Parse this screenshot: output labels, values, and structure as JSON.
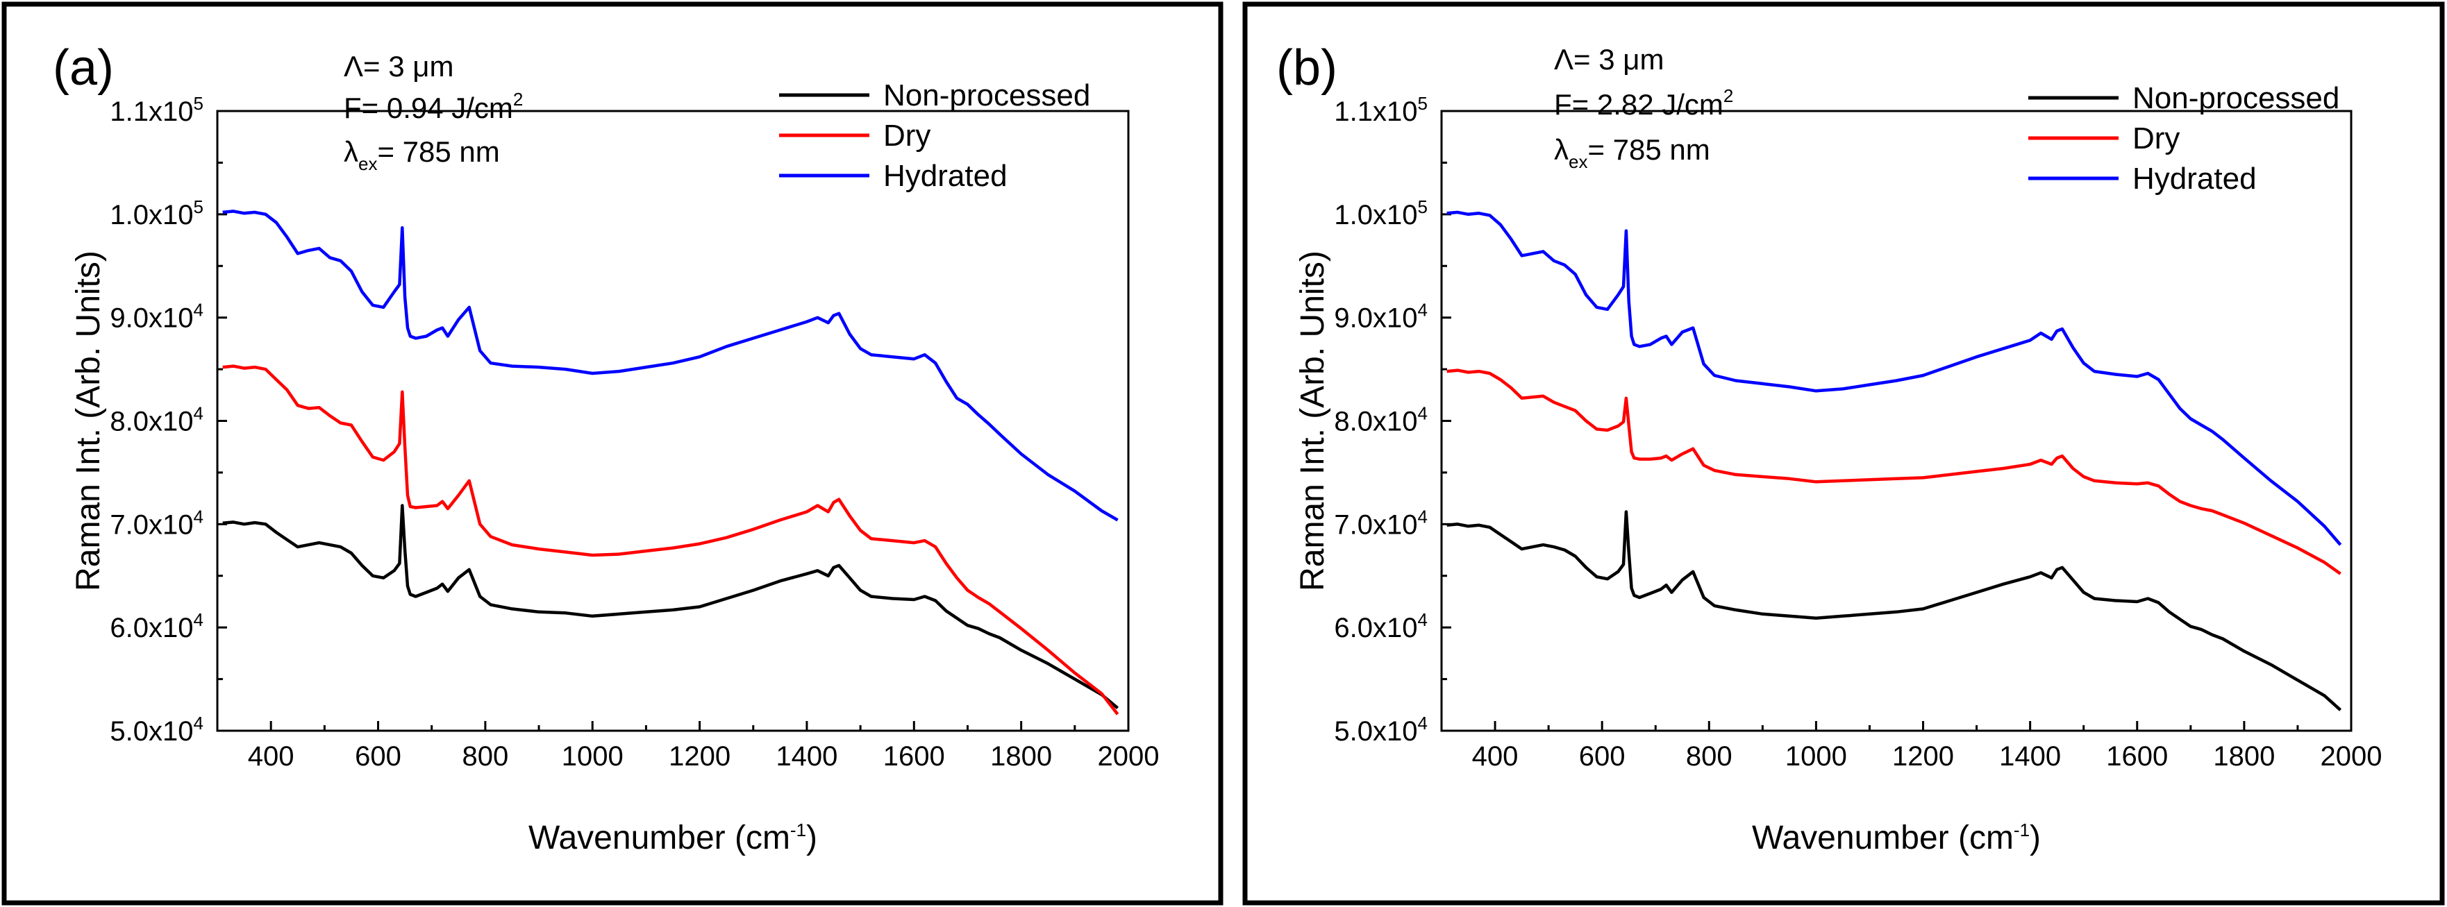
{
  "chart_data": [
    {
      "type": "line",
      "panel_label": "(a)",
      "xlabel": "Wavenumber",
      "xlabel_unit": "(cm",
      "xlabel_unit_sup": "-1",
      "xlabel_unit_end": ")",
      "ylabel": "Raman Int. (Arb. Units)",
      "xlim": [
        300,
        2000
      ],
      "ylim": [
        50000,
        110000
      ],
      "xticks": [
        400,
        600,
        800,
        1000,
        1200,
        1400,
        1600,
        1800,
        2000
      ],
      "yticks": [
        {
          "value": 50000,
          "mant": "5.0x10",
          "exp": "4"
        },
        {
          "value": 60000,
          "mant": "6.0x10",
          "exp": "4"
        },
        {
          "value": 70000,
          "mant": "7.0x10",
          "exp": "4"
        },
        {
          "value": 80000,
          "mant": "8.0x10",
          "exp": "4"
        },
        {
          "value": 90000,
          "mant": "9.0x10",
          "exp": "4"
        },
        {
          "value": 100000,
          "mant": "1.0x10",
          "exp": "5"
        },
        {
          "value": 110000,
          "mant": "1.1x10",
          "exp": "5"
        }
      ],
      "params": {
        "lambda_line": "Λ= 3 μm",
        "fluence": "F= 0.94 J/cm",
        "fluence_sup": "2",
        "lambda_sym": "λ",
        "lambda_sub": "ex",
        "lambda_value": "= 785 nm"
      },
      "legend": {
        "position": "top-right"
      },
      "series": [
        {
          "name": "Non-processed",
          "color": "#000000",
          "x": [
            310,
            330,
            350,
            370,
            390,
            410,
            430,
            450,
            470,
            490,
            510,
            530,
            550,
            570,
            590,
            610,
            630,
            640,
            645,
            650,
            655,
            660,
            670,
            690,
            710,
            720,
            730,
            750,
            770,
            790,
            810,
            850,
            900,
            950,
            1000,
            1050,
            1100,
            1150,
            1200,
            1250,
            1300,
            1350,
            1400,
            1420,
            1440,
            1450,
            1460,
            1480,
            1500,
            1520,
            1560,
            1600,
            1620,
            1640,
            1660,
            1680,
            1700,
            1720,
            1740,
            1760,
            1800,
            1850,
            1900,
            1950,
            1980
          ],
          "y": [
            70100,
            70200,
            70000,
            70150,
            70000,
            69200,
            68500,
            67800,
            68000,
            68200,
            68000,
            67800,
            67200,
            66000,
            65000,
            64800,
            65500,
            66200,
            71800,
            67500,
            64000,
            63200,
            63000,
            63400,
            63800,
            64200,
            63500,
            64800,
            65600,
            63000,
            62200,
            61800,
            61500,
            61400,
            61100,
            61300,
            61500,
            61700,
            62000,
            62800,
            63600,
            64500,
            65200,
            65500,
            65000,
            65800,
            66000,
            64800,
            63600,
            63000,
            62800,
            62700,
            63000,
            62600,
            61600,
            60900,
            60200,
            59900,
            59400,
            59000,
            57800,
            56500,
            55000,
            53500,
            52200
          ]
        },
        {
          "name": "Dry",
          "color": "#ff0000",
          "x": [
            310,
            330,
            350,
            370,
            390,
            410,
            430,
            450,
            470,
            490,
            510,
            530,
            550,
            570,
            590,
            610,
            630,
            640,
            645,
            650,
            655,
            660,
            670,
            690,
            710,
            720,
            730,
            750,
            770,
            790,
            810,
            850,
            900,
            950,
            1000,
            1050,
            1100,
            1150,
            1200,
            1250,
            1300,
            1350,
            1400,
            1420,
            1440,
            1450,
            1460,
            1480,
            1500,
            1520,
            1560,
            1600,
            1620,
            1640,
            1660,
            1680,
            1700,
            1720,
            1740,
            1760,
            1800,
            1850,
            1900,
            1950,
            1980
          ],
          "y": [
            85200,
            85300,
            85100,
            85200,
            85000,
            84000,
            83000,
            81500,
            81200,
            81300,
            80500,
            79800,
            79600,
            78000,
            76500,
            76200,
            77000,
            77800,
            82800,
            77500,
            72800,
            71700,
            71600,
            71700,
            71800,
            72200,
            71500,
            72800,
            74200,
            70000,
            68800,
            68000,
            67600,
            67300,
            67000,
            67100,
            67400,
            67700,
            68100,
            68700,
            69500,
            70400,
            71200,
            71800,
            71200,
            72100,
            72400,
            70800,
            69400,
            68600,
            68400,
            68200,
            68400,
            67800,
            66200,
            64800,
            63600,
            62900,
            62300,
            61500,
            59900,
            57800,
            55600,
            53600,
            51600
          ]
        },
        {
          "name": "Hydrated",
          "color": "#0000ff",
          "x": [
            310,
            330,
            350,
            370,
            390,
            410,
            430,
            450,
            470,
            490,
            510,
            530,
            550,
            570,
            590,
            610,
            630,
            640,
            645,
            650,
            655,
            660,
            670,
            690,
            710,
            720,
            730,
            750,
            770,
            790,
            810,
            850,
            900,
            950,
            1000,
            1050,
            1100,
            1150,
            1200,
            1250,
            1300,
            1350,
            1400,
            1420,
            1440,
            1450,
            1460,
            1480,
            1500,
            1520,
            1560,
            1600,
            1620,
            1640,
            1660,
            1680,
            1700,
            1720,
            1740,
            1760,
            1800,
            1850,
            1900,
            1950,
            1980
          ],
          "y": [
            100200,
            100300,
            100100,
            100200,
            100000,
            99200,
            97800,
            96200,
            96500,
            96700,
            95800,
            95500,
            94500,
            92500,
            91200,
            91000,
            92500,
            93200,
            98700,
            92000,
            89000,
            88200,
            88000,
            88200,
            88800,
            89000,
            88200,
            89800,
            91000,
            86800,
            85600,
            85300,
            85200,
            85000,
            84600,
            84800,
            85200,
            85600,
            86200,
            87200,
            88000,
            88800,
            89600,
            90000,
            89500,
            90200,
            90400,
            88400,
            87000,
            86400,
            86200,
            86000,
            86400,
            85600,
            83800,
            82200,
            81600,
            80600,
            79700,
            78700,
            76800,
            74800,
            73200,
            71300,
            70400
          ]
        }
      ]
    },
    {
      "type": "line",
      "panel_label": "(b)",
      "xlabel": "Wavenumber",
      "xlabel_unit": "(cm",
      "xlabel_unit_sup": "-1",
      "xlabel_unit_end": ")",
      "ylabel": "Raman Int. (Arb. Units)",
      "xlim": [
        300,
        2000
      ],
      "ylim": [
        50000,
        110000
      ],
      "xticks": [
        400,
        600,
        800,
        1000,
        1200,
        1400,
        1600,
        1800,
        2000
      ],
      "yticks": [
        {
          "value": 50000,
          "mant": "5.0x10",
          "exp": "4"
        },
        {
          "value": 60000,
          "mant": "6.0x10",
          "exp": "4"
        },
        {
          "value": 70000,
          "mant": "7.0x10",
          "exp": "4"
        },
        {
          "value": 80000,
          "mant": "8.0x10",
          "exp": "4"
        },
        {
          "value": 90000,
          "mant": "9.0x10",
          "exp": "4"
        },
        {
          "value": 100000,
          "mant": "1.0x10",
          "exp": "5"
        },
        {
          "value": 110000,
          "mant": "1.1x10",
          "exp": "5"
        }
      ],
      "params": {
        "lambda_line": "Λ= 3 μm",
        "fluence": "F= 2.82 J/cm",
        "fluence_sup": "2",
        "lambda_sym": "λ",
        "lambda_sub": "ex",
        "lambda_value": "= 785 nm"
      },
      "legend": {
        "position": "top-right"
      },
      "series": [
        {
          "name": "Non-processed",
          "color": "#000000",
          "x": [
            310,
            330,
            350,
            370,
            390,
            410,
            430,
            450,
            470,
            490,
            510,
            530,
            550,
            570,
            590,
            610,
            630,
            640,
            645,
            650,
            655,
            660,
            670,
            690,
            710,
            720,
            730,
            750,
            770,
            790,
            810,
            850,
            900,
            950,
            1000,
            1050,
            1100,
            1150,
            1200,
            1250,
            1300,
            1350,
            1400,
            1420,
            1440,
            1450,
            1460,
            1480,
            1500,
            1520,
            1560,
            1600,
            1620,
            1640,
            1660,
            1680,
            1700,
            1720,
            1740,
            1760,
            1800,
            1850,
            1900,
            1950,
            1980
          ],
          "y": [
            69900,
            70000,
            69800,
            69900,
            69700,
            69000,
            68300,
            67600,
            67800,
            68000,
            67800,
            67500,
            66900,
            65800,
            64900,
            64700,
            65400,
            66100,
            71200,
            67300,
            63800,
            63100,
            62900,
            63300,
            63700,
            64100,
            63400,
            64600,
            65400,
            62900,
            62100,
            61700,
            61300,
            61100,
            60900,
            61100,
            61300,
            61500,
            61800,
            62600,
            63400,
            64200,
            64900,
            65300,
            64800,
            65600,
            65800,
            64600,
            63400,
            62800,
            62600,
            62500,
            62800,
            62400,
            61500,
            60800,
            60100,
            59800,
            59300,
            58900,
            57700,
            56400,
            54900,
            53400,
            52000
          ]
        },
        {
          "name": "Dry",
          "color": "#ff0000",
          "x": [
            310,
            330,
            350,
            370,
            390,
            410,
            430,
            450,
            470,
            490,
            510,
            530,
            550,
            570,
            590,
            610,
            630,
            640,
            645,
            650,
            655,
            660,
            670,
            690,
            710,
            720,
            730,
            750,
            770,
            790,
            810,
            850,
            900,
            950,
            1000,
            1050,
            1100,
            1150,
            1200,
            1250,
            1300,
            1350,
            1400,
            1420,
            1440,
            1450,
            1460,
            1480,
            1500,
            1520,
            1560,
            1600,
            1620,
            1640,
            1660,
            1680,
            1700,
            1720,
            1740,
            1760,
            1800,
            1850,
            1900,
            1950,
            1980
          ],
          "y": [
            84800,
            84900,
            84700,
            84800,
            84600,
            84000,
            83200,
            82200,
            82300,
            82400,
            81800,
            81400,
            81000,
            80000,
            79200,
            79100,
            79500,
            79900,
            82200,
            79600,
            77000,
            76400,
            76300,
            76300,
            76400,
            76600,
            76200,
            76800,
            77300,
            75700,
            75200,
            74800,
            74600,
            74400,
            74100,
            74200,
            74300,
            74400,
            74500,
            74800,
            75100,
            75400,
            75800,
            76200,
            75800,
            76400,
            76600,
            75400,
            74600,
            74200,
            74000,
            73900,
            74000,
            73700,
            72900,
            72200,
            71800,
            71500,
            71300,
            70900,
            70100,
            68900,
            67700,
            66300,
            65200
          ]
        },
        {
          "name": "Hydrated",
          "color": "#0000ff",
          "x": [
            310,
            330,
            350,
            370,
            390,
            410,
            430,
            450,
            470,
            490,
            510,
            530,
            550,
            570,
            590,
            610,
            630,
            640,
            645,
            650,
            655,
            660,
            670,
            690,
            710,
            720,
            730,
            750,
            770,
            790,
            810,
            850,
            900,
            950,
            1000,
            1050,
            1100,
            1150,
            1200,
            1250,
            1300,
            1350,
            1400,
            1420,
            1440,
            1450,
            1460,
            1480,
            1500,
            1520,
            1560,
            1600,
            1620,
            1640,
            1660,
            1680,
            1700,
            1720,
            1740,
            1760,
            1800,
            1850,
            1900,
            1950,
            1980
          ],
          "y": [
            100100,
            100200,
            100000,
            100100,
            99900,
            99000,
            97600,
            96000,
            96200,
            96400,
            95500,
            95100,
            94200,
            92200,
            91000,
            90800,
            92200,
            93000,
            98400,
            91600,
            88200,
            87400,
            87200,
            87400,
            88000,
            88200,
            87400,
            88600,
            89000,
            85500,
            84400,
            83900,
            83600,
            83300,
            82900,
            83100,
            83500,
            83900,
            84400,
            85300,
            86200,
            87000,
            87800,
            88500,
            87900,
            88700,
            88900,
            87100,
            85600,
            84800,
            84500,
            84300,
            84600,
            84000,
            82600,
            81200,
            80200,
            79600,
            79000,
            78200,
            76400,
            74200,
            72200,
            69800,
            68000
          ]
        }
      ]
    }
  ]
}
